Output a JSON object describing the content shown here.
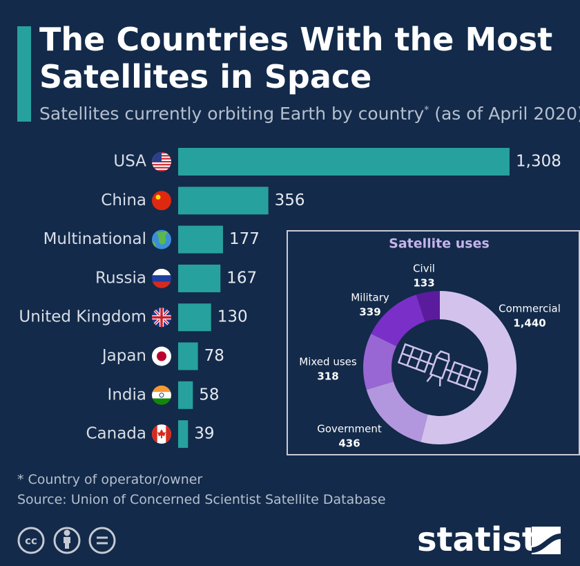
{
  "chart_data": [
    {
      "type": "bar",
      "orientation": "horizontal",
      "title": "The Countries With the Most Satellites in Space",
      "subtitle": [
        "Satellites currently orbiting Earth by country",
        "*",
        " (as of April 2020)"
      ],
      "categories": [
        "USA",
        "China",
        "Multinational",
        "Russia",
        "United Kingdom",
        "Japan",
        "India",
        "Canada"
      ],
      "values": [
        1308,
        356,
        177,
        167,
        130,
        78,
        58,
        39
      ],
      "value_labels": [
        "1,308",
        "356",
        "177",
        "167",
        "130",
        "78",
        "58",
        "39"
      ],
      "color": "#27a19d",
      "footnote": "* Country of operator/owner",
      "source": "Source: Union of Concerned Scientist Satellite Database"
    },
    {
      "type": "donut",
      "title": "Satellite uses",
      "categories": [
        "Commercial",
        "Government",
        "Mixed uses",
        "Military",
        "Civil"
      ],
      "values": [
        1440,
        436,
        318,
        339,
        133
      ],
      "value_labels": [
        "1,440",
        "436",
        "318",
        "339",
        "133"
      ],
      "colors": [
        "#d3c3ec",
        "#b397de",
        "#9867d3",
        "#7a2fc8",
        "#5a1c9c"
      ]
    }
  ],
  "license": "cc",
  "brand": "statista"
}
